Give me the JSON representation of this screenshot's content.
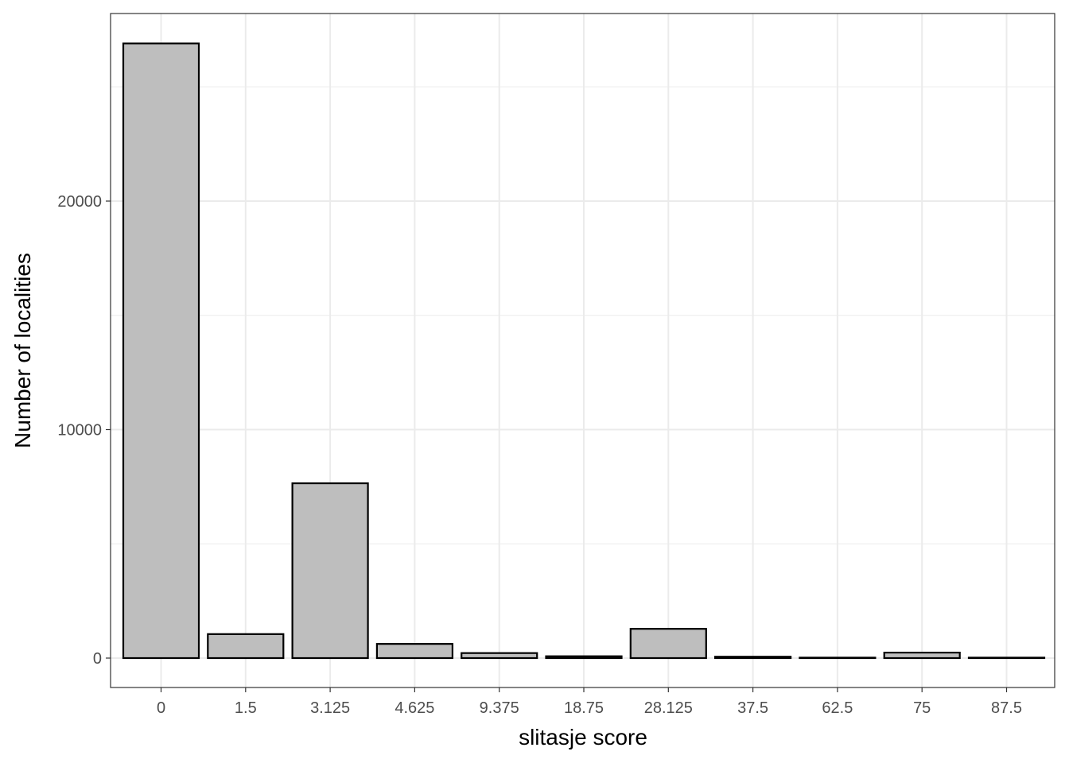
{
  "chart_data": {
    "type": "bar",
    "categories": [
      "0",
      "1.5",
      "3.125",
      "4.625",
      "9.375",
      "18.75",
      "28.125",
      "37.5",
      "62.5",
      "75",
      "87.5"
    ],
    "values": [
      26900,
      1050,
      7650,
      620,
      220,
      80,
      1280,
      60,
      20,
      240,
      20
    ],
    "xlabel": "slitasje score",
    "ylabel": "Number of localities",
    "ylim": [
      -1300,
      28200
    ],
    "yticks": [
      0,
      10000,
      20000
    ],
    "ytick_labels": [
      "0",
      "10000",
      "20000"
    ],
    "grid": true,
    "legend": "none",
    "colors": {
      "bar_fill": "#bebebe",
      "bar_stroke": "#000000",
      "grid": "#ebebeb",
      "panel_border": "#333333",
      "tick_text": "#4d4d4d"
    }
  }
}
